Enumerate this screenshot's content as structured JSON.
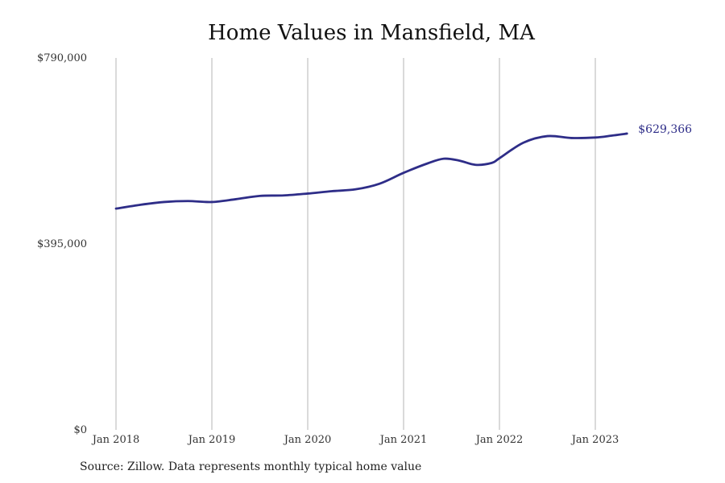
{
  "chart_data": {
    "type": "line",
    "title": "Home Values in Mansfield, MA",
    "xlabel": "",
    "ylabel": "",
    "ylim": [
      0,
      790000
    ],
    "y_ticks": [
      {
        "value": 0,
        "label": "$0"
      },
      {
        "value": 395000,
        "label": "$395,000"
      },
      {
        "value": 790000,
        "label": "$790,000"
      }
    ],
    "x_ticks": [
      {
        "value": 2018.0,
        "label": "Jan 2018"
      },
      {
        "value": 2019.0,
        "label": "Jan 2019"
      },
      {
        "value": 2020.0,
        "label": "Jan 2020"
      },
      {
        "value": 2021.0,
        "label": "Jan 2021"
      },
      {
        "value": 2022.0,
        "label": "Jan 2022"
      },
      {
        "value": 2023.0,
        "label": "Jan 2023"
      }
    ],
    "grid": "vertical",
    "legend": "none",
    "line_color": "#2e2d88",
    "series": [
      {
        "x": [
          2018.0,
          2018.25,
          2018.5,
          2018.75,
          2019.0,
          2019.25,
          2019.5,
          2019.75,
          2020.0,
          2020.25,
          2020.5,
          2020.75,
          2021.0,
          2021.25,
          2021.42,
          2021.58,
          2021.75,
          2021.92,
          2022.0,
          2022.25,
          2022.5,
          2022.75,
          2023.0,
          2023.17,
          2023.33
        ],
        "y": [
          470000,
          478000,
          484000,
          486000,
          484000,
          490000,
          497000,
          498000,
          502000,
          507000,
          511000,
          523000,
          546000,
          566000,
          576000,
          572000,
          563000,
          567000,
          577000,
          610000,
          624000,
          620000,
          621000,
          625000,
          629366
        ]
      }
    ],
    "end_label": "$629,366"
  },
  "source": "Source: Zillow. Data represents monthly typical home value"
}
